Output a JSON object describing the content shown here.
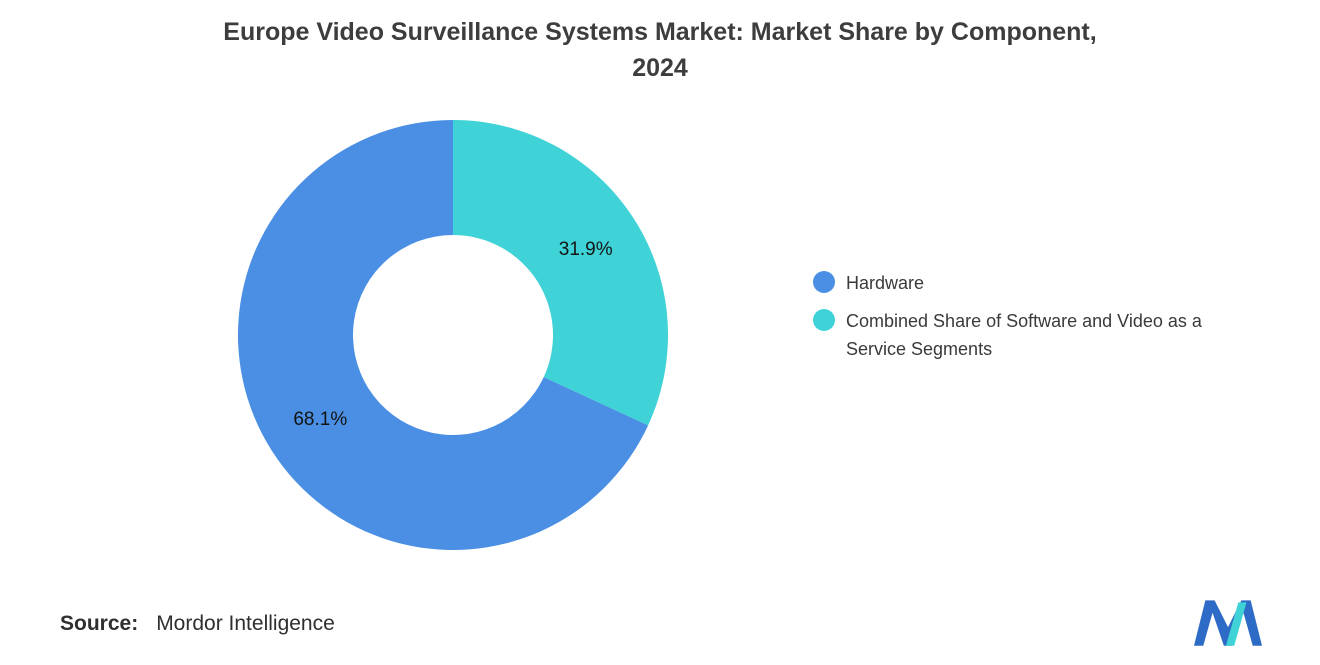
{
  "header": {
    "title_line1": "Europe Video Surveillance Systems Market: Market Share by Component,",
    "title_line2": "2024"
  },
  "chart_data": {
    "type": "pie",
    "subtype": "donut",
    "title": "Europe Video Surveillance Systems Market: Market Share by Component, 2024",
    "series": [
      {
        "name": "Hardware",
        "value": 68.1,
        "label": "68.1%",
        "color": "#4A8FE4"
      },
      {
        "name": "Combined Share of Software and Video as a Service Segments",
        "value": 31.9,
        "label": "31.9%",
        "color": "#3FD2D6"
      }
    ],
    "start_angle_deg": 114.84,
    "donut_hole_ratio": 0.465,
    "legend_position": "right",
    "slice_label_color": "#141414",
    "background": "#ffffff"
  },
  "source": {
    "label": "Source:",
    "text": "Mordor Intelligence"
  },
  "brand": {
    "logo_blue": "#2E6BC6",
    "logo_teal": "#3FD2D6"
  }
}
